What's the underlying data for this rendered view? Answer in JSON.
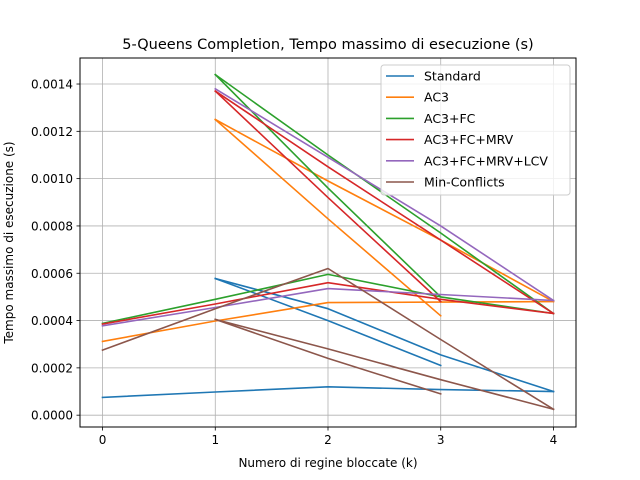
{
  "chart_data": {
    "type": "line",
    "title": "5-Queens Completion, Tempo massimo di esecuzione (s)",
    "xlabel": "Numero di regine bloccate (k)",
    "ylabel": "Tempo massimo di esecuzione (s)",
    "xlim": [
      -0.2,
      4.2
    ],
    "ylim": [
      -5e-05,
      0.00151
    ],
    "xticks": [
      0,
      1,
      2,
      3,
      4
    ],
    "xtick_labels": [
      "0",
      "1",
      "2",
      "3",
      "4"
    ],
    "yticks": [
      0,
      0.0002,
      0.0004,
      0.0006,
      0.0008,
      0.001,
      0.0012,
      0.0014
    ],
    "ytick_labels": [
      "0.0000",
      "0.0002",
      "0.0004",
      "0.0006",
      "0.0008",
      "0.0010",
      "0.0012",
      "0.0014"
    ],
    "grid": true,
    "legend_position": "top-right",
    "series": [
      {
        "name": "Standard",
        "color": "#1f77b4",
        "segments": [
          [
            [
              0,
              7.5e-05
            ],
            [
              1,
              9.8e-05
            ],
            [
              2,
              0.00012
            ],
            [
              3,
              0.000108
            ],
            [
              4,
              0.0001
            ]
          ],
          [
            [
              1,
              0.000578
            ],
            [
              2,
              0.0004
            ],
            [
              3,
              0.00021
            ]
          ],
          [
            [
              1,
              0.000578
            ],
            [
              2,
              0.00045
            ],
            [
              3,
              0.000255
            ],
            [
              4,
              0.0001
            ]
          ]
        ]
      },
      {
        "name": "AC3",
        "color": "#ff7f0e",
        "segments": [
          [
            [
              0,
              0.000312
            ],
            [
              1,
              0.000398
            ],
            [
              2,
              0.000476
            ],
            [
              3,
              0.000478
            ],
            [
              4,
              0.00048
            ]
          ],
          [
            [
              1,
              0.00125
            ],
            [
              2,
              0.00083
            ],
            [
              3,
              0.00042
            ]
          ],
          [
            [
              1,
              0.00125
            ],
            [
              2,
              0.00099
            ],
            [
              3,
              0.00074
            ],
            [
              4,
              0.00048
            ]
          ]
        ]
      },
      {
        "name": "AC3+FC",
        "color": "#2ca02c",
        "segments": [
          [
            [
              0,
              0.000388
            ],
            [
              1,
              0.00049
            ],
            [
              2,
              0.000595
            ],
            [
              3,
              0.0005
            ],
            [
              4,
              0.00043
            ]
          ],
          [
            [
              1,
              0.00144
            ],
            [
              2,
              0.00096
            ],
            [
              3,
              0.0005
            ]
          ],
          [
            [
              1,
              0.00144
            ],
            [
              2,
              0.0011
            ],
            [
              3,
              0.00077
            ],
            [
              4,
              0.00043
            ]
          ]
        ]
      },
      {
        "name": "AC3+FC+MRV",
        "color": "#d62728",
        "segments": [
          [
            [
              0,
              0.000385
            ],
            [
              1,
              0.00047
            ],
            [
              2,
              0.00056
            ],
            [
              3,
              0.00049
            ],
            [
              4,
              0.00043
            ]
          ],
          [
            [
              1,
              0.00137
            ],
            [
              2,
              0.00092
            ],
            [
              3,
              0.00048
            ]
          ],
          [
            [
              1,
              0.00137
            ],
            [
              2,
              0.00105
            ],
            [
              3,
              0.00074
            ],
            [
              4,
              0.00043
            ]
          ]
        ]
      },
      {
        "name": "AC3+FC+MRV+LCV",
        "color": "#9467bd",
        "segments": [
          [
            [
              0,
              0.000378
            ],
            [
              1,
              0.000455
            ],
            [
              2,
              0.000535
            ],
            [
              3,
              0.00051
            ],
            [
              4,
              0.000485
            ]
          ],
          [
            [
              1,
              0.00138
            ],
            [
              2,
              0.00109
            ],
            [
              3,
              0.0008
            ],
            [
              4,
              0.000485
            ]
          ]
        ]
      },
      {
        "name": "Min-Conflicts",
        "color": "#8c564b",
        "segments": [
          [
            [
              0,
              0.000275
            ],
            [
              1,
              0.00045
            ],
            [
              2,
              0.00062
            ],
            [
              3,
              0.00032
            ],
            [
              4,
              2.5e-05
            ]
          ],
          [
            [
              1,
              0.000405
            ],
            [
              2,
              0.00024
            ],
            [
              3,
              9e-05
            ]
          ],
          [
            [
              1,
              0.000405
            ],
            [
              2,
              0.00028
            ],
            [
              3,
              0.00015
            ],
            [
              4,
              2.5e-05
            ]
          ]
        ]
      }
    ]
  }
}
